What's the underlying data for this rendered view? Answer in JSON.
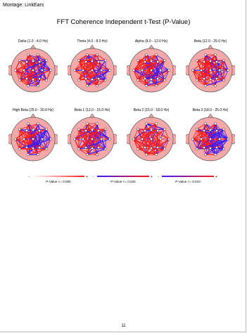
{
  "header": {
    "montage": "Montage:  LinkEars",
    "title": "FFT Coherence Independent t-Test  (P-Value)"
  },
  "panels": [
    {
      "label": "Delta (1.0 - 4.0 Hz)",
      "blue": 0.45
    },
    {
      "label": "Theta (4.0 - 8.0 Hz)",
      "blue": 0.3
    },
    {
      "label": "Alpha (8.0 - 12.0 Hz)",
      "blue": 0.4
    },
    {
      "label": "Beta (12.0 - 25.0 Hz)",
      "blue": 0.35
    },
    {
      "label": "High Beta (25.0 - 30.0 Hz)",
      "blue": 0.5
    },
    {
      "label": "Beta 1 (12.0 - 15.0 Hz)",
      "blue": 0.45
    },
    {
      "label": "Beta 2 (15.0 - 18.0 Hz)",
      "blue": 0.25
    },
    {
      "label": "Beta 3 (18.0 - 25.0 Hz)",
      "blue": 0.55
    }
  ],
  "legend": [
    {
      "label": "P-Value <= 0.050",
      "low": "-",
      "high": "+"
    },
    {
      "label": "P-Value <= 0.025",
      "low": "-",
      "high": "+"
    },
    {
      "label": "P-Value <= 0.010",
      "low": "-",
      "high": "+"
    }
  ],
  "colors": {
    "positive": "#ff1a1a",
    "negative": "#3b1aff",
    "scalp": "#f4a8a8"
  },
  "page_number": "11"
}
